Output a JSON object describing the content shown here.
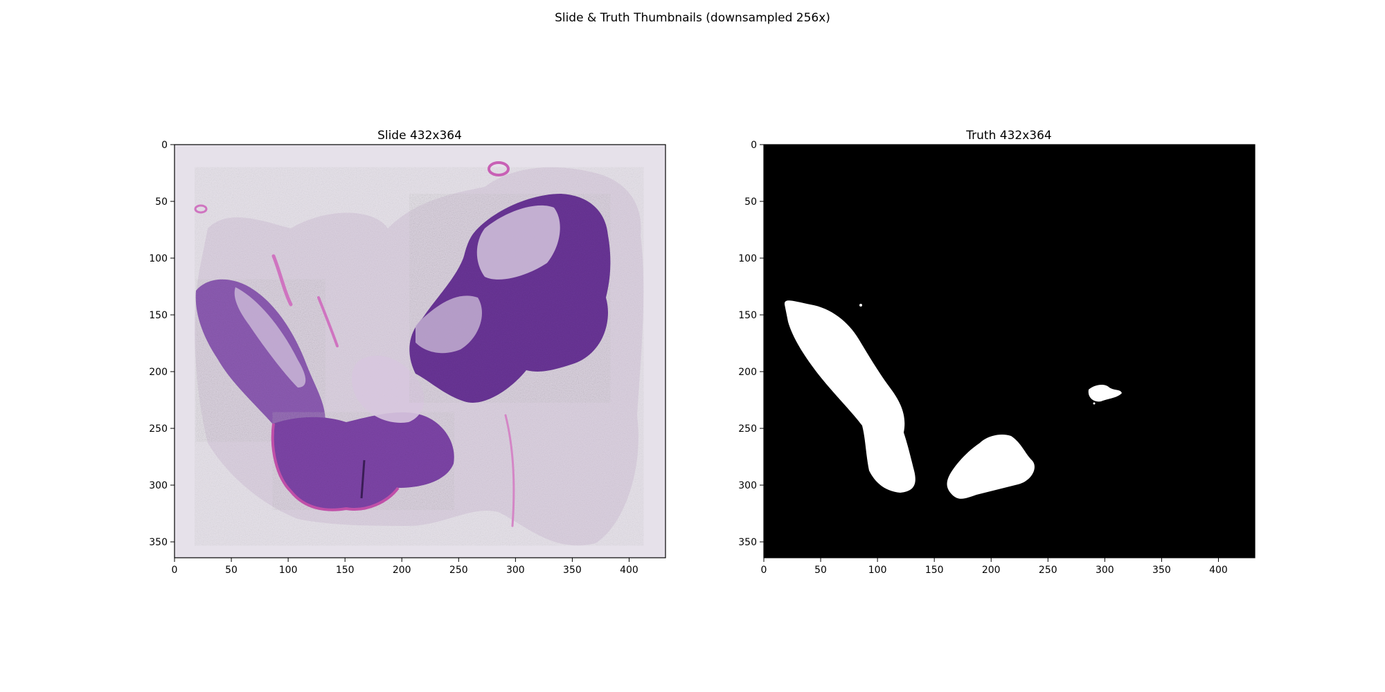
{
  "figure": {
    "title": "Slide & Truth Thumbnails (downsampled 256x)"
  },
  "panels": [
    {
      "id": "slide",
      "title": "Slide 432x364",
      "image": "H&E stained tissue slide thumbnail",
      "background": "#e6e1ea",
      "x_ticks": [
        "0",
        "50",
        "100",
        "150",
        "200",
        "250",
        "300",
        "350",
        "400"
      ],
      "y_ticks": [
        "0",
        "50",
        "100",
        "150",
        "200",
        "250",
        "300",
        "350"
      ]
    },
    {
      "id": "truth",
      "title": "Truth 432x364",
      "image": "binary tumor mask",
      "background": "#000000",
      "x_ticks": [
        "0",
        "50",
        "100",
        "150",
        "200",
        "250",
        "300",
        "350",
        "400"
      ],
      "y_ticks": [
        "0",
        "50",
        "100",
        "150",
        "200",
        "250",
        "300",
        "350"
      ]
    }
  ],
  "image_extent": {
    "width": 432,
    "height": 364
  },
  "colors": {
    "tissue_dark": "#5b2f8f",
    "tissue_mid": "#8a4fb0",
    "tissue_pink": "#c76ab8",
    "tissue_pale": "#d9cde0",
    "mask_fg": "#ffffff",
    "mask_bg": "#000000"
  }
}
